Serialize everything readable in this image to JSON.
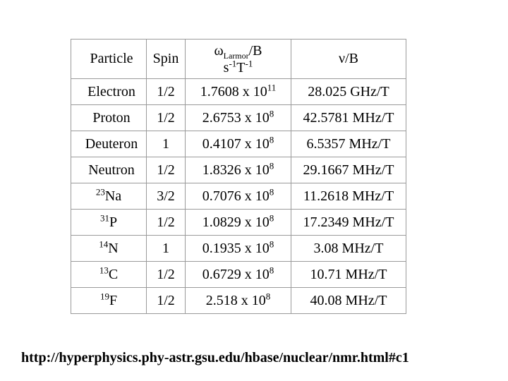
{
  "slide": {
    "source_url": "http://hyperphysics.phy-astr.gsu.edu/hbase/nuclear/nmr.html#c1"
  },
  "table": {
    "header": {
      "particle": "Particle",
      "spin": "Spin",
      "omega": {
        "symbol": "ω",
        "subscript": "Larmor",
        "suffix": "/B"
      },
      "omega_units": {
        "base1": "s",
        "exp1": "-1",
        "base2": "T",
        "exp2": "-1"
      },
      "nu": "ν/B"
    },
    "rows": [
      {
        "particle": {
          "sup": "",
          "name": "Electron"
        },
        "spin": "1/2",
        "ratio": {
          "base": "1.7608 x 10",
          "exp": "11"
        },
        "nu": "28.025 GHz/T"
      },
      {
        "particle": {
          "sup": "",
          "name": "Proton"
        },
        "spin": "1/2",
        "ratio": {
          "base": "2.6753 x 10",
          "exp": "8"
        },
        "nu": "42.5781 MHz/T"
      },
      {
        "particle": {
          "sup": "",
          "name": "Deuteron"
        },
        "spin": "1",
        "ratio": {
          "base": "0.4107 x 10",
          "exp": "8"
        },
        "nu": "6.5357 MHz/T"
      },
      {
        "particle": {
          "sup": "",
          "name": "Neutron"
        },
        "spin": "1/2",
        "ratio": {
          "base": "1.8326 x 10",
          "exp": "8"
        },
        "nu": "29.1667 MHz/T"
      },
      {
        "particle": {
          "sup": "23",
          "name": "Na"
        },
        "spin": "3/2",
        "ratio": {
          "base": "0.7076 x 10",
          "exp": "8"
        },
        "nu": "11.2618 MHz/T"
      },
      {
        "particle": {
          "sup": "31",
          "name": "P"
        },
        "spin": "1/2",
        "ratio": {
          "base": "1.0829 x 10",
          "exp": "8"
        },
        "nu": "17.2349 MHz/T"
      },
      {
        "particle": {
          "sup": "14",
          "name": "N"
        },
        "spin": "1",
        "ratio": {
          "base": "0.1935 x 10",
          "exp": "8"
        },
        "nu": "3.08 MHz/T"
      },
      {
        "particle": {
          "sup": "13",
          "name": "C"
        },
        "spin": "1/2",
        "ratio": {
          "base": "0.6729 x 10",
          "exp": "8"
        },
        "nu": "10.71 MHz/T"
      },
      {
        "particle": {
          "sup": "19",
          "name": "F"
        },
        "spin": "1/2",
        "ratio": {
          "base": "2.518 x 10",
          "exp": "8"
        },
        "nu": "40.08 MHz/T"
      }
    ]
  },
  "colors": {
    "background": "#ffffff",
    "text": "#000000",
    "border": "#9a9a9a"
  }
}
